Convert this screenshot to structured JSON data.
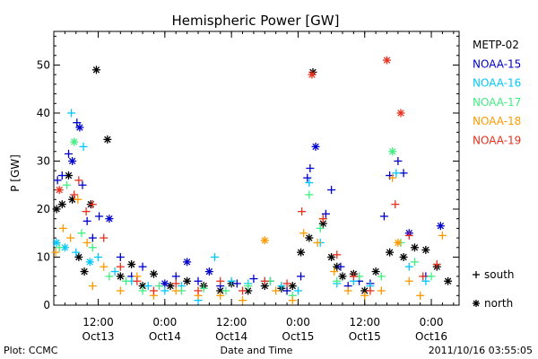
{
  "chart_data": {
    "type": "scatter",
    "title": "Hemispheric Power [GW]",
    "ylabel": "P [GW]",
    "xlabel": "Date and Time",
    "ylim": [
      0,
      57
    ],
    "yticks": [
      0,
      10,
      20,
      30,
      40,
      50
    ],
    "xlim": [
      "2011-10-13 04:00",
      "2011-10-16 05:00"
    ],
    "xticks": [
      {
        "at": "2011-10-13 12:00",
        "time": "12:00",
        "date": "Oct13"
      },
      {
        "at": "2011-10-14 00:00",
        "time": "0:00",
        "date": "Oct14"
      },
      {
        "at": "2011-10-14 12:00",
        "time": "12:00",
        "date": "Oct14"
      },
      {
        "at": "2011-10-15 00:00",
        "time": "0:00",
        "date": "Oct15"
      },
      {
        "at": "2011-10-15 12:00",
        "time": "12:00",
        "date": "Oct15"
      },
      {
        "at": "2011-10-16 00:00",
        "time": "0:00",
        "date": "Oct16"
      }
    ],
    "series": [
      {
        "name": "METP-02",
        "color": "#000000",
        "points": [
          [
            "2011-10-13 04:30",
            20,
            "n"
          ],
          [
            "2011-10-13 05:30",
            21,
            "n"
          ],
          [
            "2011-10-13 06:40",
            27,
            "n"
          ],
          [
            "2011-10-13 07:20",
            22,
            "n"
          ],
          [
            "2011-10-13 08:30",
            10,
            "n"
          ],
          [
            "2011-10-13 09:30",
            7,
            "n"
          ],
          [
            "2011-10-13 10:40",
            21,
            "n"
          ],
          [
            "2011-10-13 11:40",
            49,
            "n"
          ],
          [
            "2011-10-13 13:40",
            34.5,
            "n"
          ],
          [
            "2011-10-13 16:00",
            6,
            "n"
          ],
          [
            "2011-10-13 18:00",
            8.5,
            "n"
          ],
          [
            "2011-10-13 20:00",
            4,
            "n"
          ],
          [
            "2011-10-13 22:00",
            6.5,
            "n"
          ],
          [
            "2011-10-14 01:00",
            4,
            "n"
          ],
          [
            "2011-10-14 04:00",
            5,
            "n"
          ],
          [
            "2011-10-14 07:00",
            4,
            "n"
          ],
          [
            "2011-10-14 10:00",
            3,
            "n"
          ],
          [
            "2011-10-14 12:00",
            4.5,
            "n"
          ],
          [
            "2011-10-14 15:00",
            3,
            "n"
          ],
          [
            "2011-10-14 18:00",
            4,
            "n"
          ],
          [
            "2011-10-14 21:00",
            3.5,
            "n"
          ],
          [
            "2011-10-14 23:00",
            4,
            "n"
          ],
          [
            "2011-10-15 00:30",
            11,
            "n"
          ],
          [
            "2011-10-15 02:00",
            14,
            "n"
          ],
          [
            "2011-10-15 02:40",
            48.5,
            "n"
          ],
          [
            "2011-10-15 04:30",
            17,
            "n"
          ],
          [
            "2011-10-15 06:00",
            10,
            "n"
          ],
          [
            "2011-10-15 07:00",
            8,
            "n"
          ],
          [
            "2011-10-15 08:00",
            6,
            "n"
          ],
          [
            "2011-10-15 10:00",
            6.5,
            "n"
          ],
          [
            "2011-10-15 12:00",
            3,
            "n"
          ],
          [
            "2011-10-15 14:00",
            7,
            "n"
          ],
          [
            "2011-10-15 16:30",
            11,
            "n"
          ],
          [
            "2011-10-15 19:00",
            10,
            "n"
          ],
          [
            "2011-10-15 21:00",
            12,
            "n"
          ],
          [
            "2011-10-15 23:00",
            11.5,
            "n"
          ],
          [
            "2011-10-16 01:00",
            8,
            "n"
          ],
          [
            "2011-10-16 03:00",
            5,
            "n"
          ]
        ]
      },
      {
        "name": "NOAA-15",
        "color": "#0000cc",
        "points": [
          [
            "2011-10-13 04:40",
            26,
            "s"
          ],
          [
            "2011-10-13 05:30",
            27,
            "s"
          ],
          [
            "2011-10-13 06:40",
            31.5,
            "s"
          ],
          [
            "2011-10-13 07:20",
            30,
            "n"
          ],
          [
            "2011-10-13 08:10",
            38,
            "s"
          ],
          [
            "2011-10-13 08:40",
            37,
            "n"
          ],
          [
            "2011-10-13 09:10",
            25,
            "s"
          ],
          [
            "2011-10-13 10:00",
            17.5,
            "s"
          ],
          [
            "2011-10-13 11:00",
            14,
            "s"
          ],
          [
            "2011-10-13 12:10",
            18.5,
            "s"
          ],
          [
            "2011-10-13 14:00",
            18,
            "n"
          ],
          [
            "2011-10-13 16:00",
            10,
            "s"
          ],
          [
            "2011-10-13 18:00",
            6,
            "s"
          ],
          [
            "2011-10-13 20:00",
            8,
            "s"
          ],
          [
            "2011-10-14 00:00",
            4.5,
            "n"
          ],
          [
            "2011-10-14 02:00",
            6,
            "s"
          ],
          [
            "2011-10-14 04:00",
            9,
            "n"
          ],
          [
            "2011-10-14 06:00",
            5,
            "s"
          ],
          [
            "2011-10-14 08:00",
            7,
            "n"
          ],
          [
            "2011-10-14 10:00",
            4,
            "s"
          ],
          [
            "2011-10-14 13:00",
            4.5,
            "s"
          ],
          [
            "2011-10-14 16:00",
            5.5,
            "s"
          ],
          [
            "2011-10-14 19:00",
            5,
            "s"
          ],
          [
            "2011-10-14 22:00",
            3,
            "s"
          ],
          [
            "2011-10-15 00:30",
            6,
            "s"
          ],
          [
            "2011-10-15 01:40",
            26.5,
            "s"
          ],
          [
            "2011-10-15 02:10",
            28.5,
            "s"
          ],
          [
            "2011-10-15 03:10",
            33,
            "n"
          ],
          [
            "2011-10-15 05:00",
            19,
            "s"
          ],
          [
            "2011-10-15 06:00",
            24,
            "s"
          ],
          [
            "2011-10-15 07:40",
            8,
            "s"
          ],
          [
            "2011-10-15 09:00",
            4,
            "s"
          ],
          [
            "2011-10-15 11:00",
            5,
            "s"
          ],
          [
            "2011-10-15 13:00",
            4.5,
            "s"
          ],
          [
            "2011-10-15 15:30",
            18.5,
            "s"
          ],
          [
            "2011-10-15 16:30",
            27,
            "s"
          ],
          [
            "2011-10-15 18:00",
            30,
            "s"
          ],
          [
            "2011-10-15 19:00",
            27.5,
            "s"
          ],
          [
            "2011-10-15 20:00",
            15,
            "n"
          ],
          [
            "2011-10-15 23:00",
            6,
            "s"
          ],
          [
            "2011-10-16 01:40",
            16.5,
            "n"
          ]
        ]
      },
      {
        "name": "NOAA-16",
        "color": "#00c8ff",
        "points": [
          [
            "2011-10-13 04:30",
            13,
            "n"
          ],
          [
            "2011-10-13 06:00",
            12,
            "n"
          ],
          [
            "2011-10-13 07:10",
            40,
            "s"
          ],
          [
            "2011-10-13 08:00",
            11,
            "s"
          ],
          [
            "2011-10-13 09:20",
            33,
            "s"
          ],
          [
            "2011-10-13 10:30",
            9,
            "n"
          ],
          [
            "2011-10-13 12:00",
            10,
            "s"
          ],
          [
            "2011-10-13 15:00",
            7,
            "s"
          ],
          [
            "2011-10-13 18:00",
            5,
            "s"
          ],
          [
            "2011-10-13 21:00",
            4,
            "s"
          ],
          [
            "2011-10-14 00:00",
            3,
            "s"
          ],
          [
            "2011-10-14 03:00",
            4,
            "s"
          ],
          [
            "2011-10-14 06:00",
            1,
            "s"
          ],
          [
            "2011-10-14 09:00",
            10,
            "s"
          ],
          [
            "2011-10-14 12:00",
            5,
            "s"
          ],
          [
            "2011-10-14 15:00",
            4.5,
            "s"
          ],
          [
            "2011-10-14 18:00",
            5,
            "s"
          ],
          [
            "2011-10-14 21:00",
            4,
            "s"
          ],
          [
            "2011-10-15 00:00",
            3,
            "s"
          ],
          [
            "2011-10-15 02:00",
            25.5,
            "s"
          ],
          [
            "2011-10-15 04:00",
            13,
            "s"
          ],
          [
            "2011-10-15 07:00",
            4.5,
            "s"
          ],
          [
            "2011-10-15 10:00",
            5,
            "s"
          ],
          [
            "2011-10-15 13:00",
            4,
            "s"
          ],
          [
            "2011-10-15 17:40",
            27.5,
            "s"
          ],
          [
            "2011-10-15 20:00",
            8,
            "s"
          ],
          [
            "2011-10-15 23:00",
            5,
            "s"
          ]
        ]
      },
      {
        "name": "NOAA-17",
        "color": "#40ee80",
        "points": [
          [
            "2011-10-13 05:00",
            12,
            "s"
          ],
          [
            "2011-10-13 06:20",
            25,
            "s"
          ],
          [
            "2011-10-13 07:40",
            34,
            "n"
          ],
          [
            "2011-10-13 09:00",
            15,
            "s"
          ],
          [
            "2011-10-13 11:00",
            12,
            "s"
          ],
          [
            "2011-10-13 14:00",
            6,
            "s"
          ],
          [
            "2011-10-13 17:00",
            5,
            "s"
          ],
          [
            "2011-10-13 20:00",
            3,
            "s"
          ],
          [
            "2011-10-13 23:00",
            4,
            "s"
          ],
          [
            "2011-10-14 03:00",
            3,
            "s"
          ],
          [
            "2011-10-14 07:00",
            3.5,
            "s"
          ],
          [
            "2011-10-14 11:00",
            3,
            "s"
          ],
          [
            "2011-10-14 15:00",
            4,
            "s"
          ],
          [
            "2011-10-14 19:00",
            5,
            "s"
          ],
          [
            "2011-10-14 23:00",
            2,
            "s"
          ],
          [
            "2011-10-15 02:00",
            23,
            "s"
          ],
          [
            "2011-10-15 04:00",
            16,
            "s"
          ],
          [
            "2011-10-15 07:00",
            5,
            "s"
          ],
          [
            "2011-10-15 11:00",
            6,
            "s"
          ],
          [
            "2011-10-15 15:00",
            6,
            "s"
          ],
          [
            "2011-10-15 17:00",
            32,
            "n"
          ],
          [
            "2011-10-15 18:30",
            13,
            "s"
          ],
          [
            "2011-10-15 21:00",
            9,
            "s"
          ],
          [
            "2011-10-16 00:00",
            6,
            "s"
          ]
        ]
      },
      {
        "name": "NOAA-18",
        "color": "#ff9900",
        "points": [
          [
            "2011-10-13 04:20",
            11,
            "s"
          ],
          [
            "2011-10-13 05:40",
            16,
            "s"
          ],
          [
            "2011-10-13 07:00",
            14,
            "s"
          ],
          [
            "2011-10-13 08:20",
            22,
            "s"
          ],
          [
            "2011-10-13 10:00",
            13,
            "s"
          ],
          [
            "2011-10-13 11:00",
            4,
            "s"
          ],
          [
            "2011-10-13 13:00",
            8,
            "s"
          ],
          [
            "2011-10-13 16:00",
            3,
            "s"
          ],
          [
            "2011-10-13 19:00",
            6,
            "s"
          ],
          [
            "2011-10-13 22:00",
            2,
            "s"
          ],
          [
            "2011-10-14 02:00",
            3,
            "s"
          ],
          [
            "2011-10-14 06:00",
            2,
            "s"
          ],
          [
            "2011-10-14 10:00",
            2,
            "s"
          ],
          [
            "2011-10-14 14:00",
            1,
            "s"
          ],
          [
            "2011-10-14 18:00",
            13.5,
            "n"
          ],
          [
            "2011-10-14 20:00",
            3,
            "s"
          ],
          [
            "2011-10-14 23:00",
            1,
            "s"
          ],
          [
            "2011-10-15 01:00",
            15,
            "s"
          ],
          [
            "2011-10-15 03:30",
            13,
            "s"
          ],
          [
            "2011-10-15 04:30",
            18,
            "s"
          ],
          [
            "2011-10-15 06:30",
            7,
            "s"
          ],
          [
            "2011-10-15 09:00",
            3,
            "s"
          ],
          [
            "2011-10-15 12:00",
            2,
            "s"
          ],
          [
            "2011-10-15 15:00",
            3,
            "s"
          ],
          [
            "2011-10-15 17:00",
            26.5,
            "s"
          ],
          [
            "2011-10-15 18:00",
            13,
            "n"
          ],
          [
            "2011-10-15 20:00",
            5,
            "s"
          ],
          [
            "2011-10-15 22:00",
            2,
            "s"
          ],
          [
            "2011-10-16 02:00",
            14.5,
            "s"
          ]
        ]
      },
      {
        "name": "NOAA-19",
        "color": "#e8301c",
        "points": [
          [
            "2011-10-13 05:00",
            24,
            "n"
          ],
          [
            "2011-10-13 07:40",
            23,
            "s"
          ],
          [
            "2011-10-13 08:30",
            26,
            "s"
          ],
          [
            "2011-10-13 09:50",
            19.5,
            "s"
          ],
          [
            "2011-10-13 11:00",
            21,
            "s"
          ],
          [
            "2011-10-13 13:00",
            14,
            "s"
          ],
          [
            "2011-10-13 16:00",
            8,
            "s"
          ],
          [
            "2011-10-13 19:00",
            5,
            "s"
          ],
          [
            "2011-10-13 22:00",
            3,
            "s"
          ],
          [
            "2011-10-14 02:00",
            4.5,
            "s"
          ],
          [
            "2011-10-14 06:00",
            3,
            "s"
          ],
          [
            "2011-10-14 10:00",
            5,
            "s"
          ],
          [
            "2011-10-14 14:00",
            3,
            "s"
          ],
          [
            "2011-10-14 18:00",
            5,
            "s"
          ],
          [
            "2011-10-14 22:00",
            4.5,
            "s"
          ],
          [
            "2011-10-15 00:40",
            19.5,
            "s"
          ],
          [
            "2011-10-15 02:30",
            48,
            "n"
          ],
          [
            "2011-10-15 04:30",
            18,
            "s"
          ],
          [
            "2011-10-15 07:00",
            10.5,
            "s"
          ],
          [
            "2011-10-15 10:00",
            6,
            "s"
          ],
          [
            "2011-10-15 13:00",
            3,
            "s"
          ],
          [
            "2011-10-15 16:00",
            51,
            "n"
          ],
          [
            "2011-10-15 17:30",
            21,
            "s"
          ],
          [
            "2011-10-15 18:30",
            40,
            "n"
          ],
          [
            "2011-10-15 20:00",
            14.5,
            "s"
          ],
          [
            "2011-10-15 22:30",
            6,
            "s"
          ],
          [
            "2011-10-16 01:00",
            8.5,
            "s"
          ]
        ]
      }
    ],
    "marker_legend": [
      {
        "symbol": "+",
        "label": "south"
      },
      {
        "symbol": "*",
        "label": "north"
      }
    ]
  },
  "footer": {
    "credit": "Plot: CCMC",
    "timestamp": "2011/10/16 03:55:05"
  }
}
